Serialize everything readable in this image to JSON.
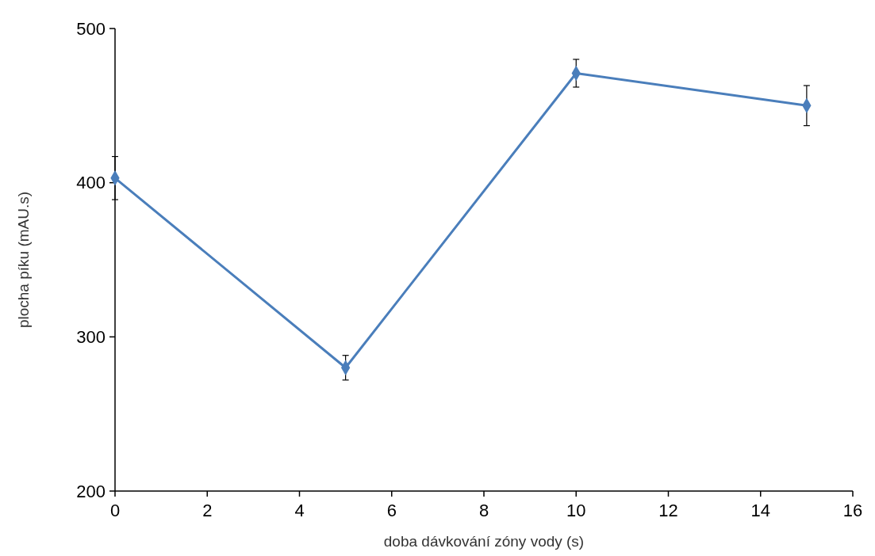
{
  "chart_data": {
    "type": "line",
    "xlabel": "doba dávkování zóny vody (s)",
    "ylabel": "plocha píku (mAU.s)",
    "x": [
      0,
      5,
      10,
      15
    ],
    "series": [
      {
        "color": "#4a7ebb",
        "values": [
          403,
          280,
          471,
          450
        ],
        "errors": [
          14,
          8,
          9,
          13
        ]
      }
    ],
    "xlim": [
      0,
      16
    ],
    "xticks": [
      0,
      2,
      4,
      6,
      8,
      10,
      12,
      14,
      16
    ],
    "ylim": [
      200,
      500
    ],
    "yticks": [
      200,
      300,
      400,
      500
    ],
    "marker": "diamond",
    "line_style": "solid"
  }
}
